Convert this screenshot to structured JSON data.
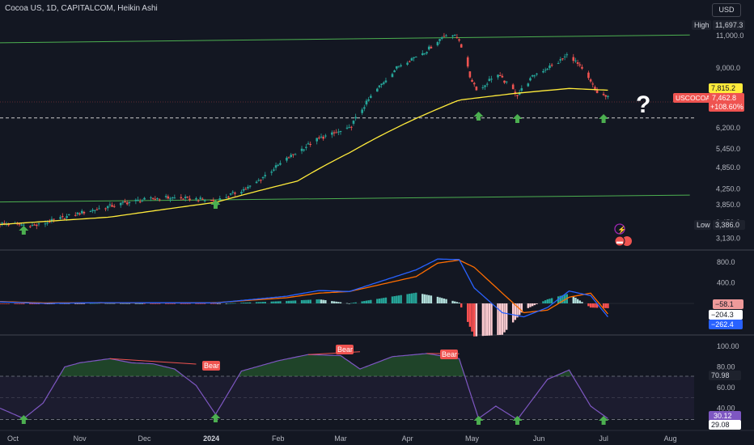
{
  "header": {
    "title": "Cocoa US, 1D, CAPITALCOM, Heikin Ashi",
    "currency": "USD"
  },
  "colors": {
    "bull": "#26a69a",
    "bear": "#ef5350",
    "sma": "#ffeb3b",
    "channel": "#4caf50",
    "macd": "#2962ff",
    "signal": "#ff6d00",
    "rsi": "#7e57c2",
    "arrow": "#4caf50"
  },
  "chart_data": [
    {
      "type": "candlestick",
      "style": "Heikin Ashi",
      "price_scale": "log",
      "y_ticks": [
        "11,000.0",
        "9,000.0",
        "7,815.2",
        "6,200.0",
        "5,450.0",
        "4,850.0",
        "4,250.0",
        "3,850.0",
        "3,450.0",
        "3,130.0"
      ],
      "labels": {
        "high": {
          "text": "High",
          "value": "11,697.3"
        },
        "low": {
          "text": "Low",
          "value": "3,386.0"
        },
        "symbol": "USCOCOA",
        "last_price": "7,462.8",
        "change_pct": "+108.60%",
        "sma_value": "7,815.2",
        "question_mark": "?"
      },
      "close_path": [
        [
          "2023-09-25",
          3420
        ],
        [
          "2023-10-12",
          3380
        ],
        [
          "2023-11-01",
          3650
        ],
        [
          "2023-11-25",
          3920
        ],
        [
          "2023-12-10",
          4020
        ],
        [
          "2023-12-25",
          3980
        ],
        [
          "2024-01-03",
          3930
        ],
        [
          "2024-01-20",
          4320
        ],
        [
          "2024-02-05",
          5100
        ],
        [
          "2024-02-20",
          5800
        ],
        [
          "2024-03-05",
          6150
        ],
        [
          "2024-03-15",
          7500
        ],
        [
          "2024-03-28",
          9100
        ],
        [
          "2024-04-10",
          10000
        ],
        [
          "2024-04-20",
          11200
        ],
        [
          "2024-04-25",
          10700
        ],
        [
          "2024-04-30",
          8500
        ],
        [
          "2024-05-04",
          7700
        ],
        [
          "2024-05-12",
          8700
        ],
        [
          "2024-05-22",
          7600
        ],
        [
          "2024-05-30",
          8600
        ],
        [
          "2024-06-10",
          9300
        ],
        [
          "2024-06-15",
          9800
        ],
        [
          "2024-06-22",
          8700
        ],
        [
          "2024-06-28",
          7700
        ],
        [
          "2024-07-03",
          7460
        ]
      ],
      "sma_path": [
        [
          "2023-09-25",
          3400
        ],
        [
          "2023-11-15",
          3560
        ],
        [
          "2024-01-03",
          3900
        ],
        [
          "2024-02-10",
          4450
        ],
        [
          "2024-03-05",
          5300
        ],
        [
          "2024-04-01",
          6400
        ],
        [
          "2024-04-25",
          7350
        ],
        [
          "2024-05-20",
          7650
        ],
        [
          "2024-06-15",
          7900
        ],
        [
          "2024-07-03",
          7815
        ]
      ],
      "channel_upper": [
        [
          "2023-09-25",
          10480
        ],
        [
          "2024-08-10",
          11000
        ]
      ],
      "channel_lower": [
        [
          "2023-09-25",
          3910
        ],
        [
          "2024-08-10",
          4080
        ]
      ],
      "support_dashed": 6580,
      "buy_signals": [
        "2023-10-06",
        "2024-01-03",
        "2024-05-04",
        "2024-05-22",
        "2024-07-01"
      ]
    },
    {
      "type": "macd",
      "y_ticks": [
        "800.0",
        "400.0"
      ],
      "labels": {
        "histogram": "−58.1",
        "signal": "−204.3",
        "macd": "−262.4"
      },
      "macd_path": [
        [
          "2023-09-25",
          30
        ],
        [
          "2023-10-15",
          0
        ],
        [
          "2023-11-10",
          15
        ],
        [
          "2024-01-03",
          10
        ],
        [
          "2024-02-05",
          140
        ],
        [
          "2024-02-20",
          250
        ],
        [
          "2024-03-05",
          230
        ],
        [
          "2024-04-05",
          650
        ],
        [
          "2024-04-15",
          860
        ],
        [
          "2024-04-25",
          850
        ],
        [
          "2024-05-02",
          300
        ],
        [
          "2024-05-15",
          -180
        ],
        [
          "2024-05-25",
          -260
        ],
        [
          "2024-06-05",
          -80
        ],
        [
          "2024-06-15",
          240
        ],
        [
          "2024-06-25",
          150
        ],
        [
          "2024-07-03",
          -262
        ]
      ],
      "signal_path": [
        [
          "2023-09-25",
          35
        ],
        [
          "2023-10-15",
          10
        ],
        [
          "2023-11-10",
          12
        ],
        [
          "2024-01-03",
          15
        ],
        [
          "2024-02-05",
          110
        ],
        [
          "2024-02-20",
          200
        ],
        [
          "2024-03-05",
          230
        ],
        [
          "2024-04-05",
          520
        ],
        [
          "2024-04-15",
          780
        ],
        [
          "2024-04-25",
          840
        ],
        [
          "2024-05-02",
          700
        ],
        [
          "2024-05-15",
          200
        ],
        [
          "2024-05-25",
          -180
        ],
        [
          "2024-06-05",
          -130
        ],
        [
          "2024-06-15",
          120
        ],
        [
          "2024-06-25",
          200
        ],
        [
          "2024-07-03",
          -204
        ]
      ]
    },
    {
      "type": "rsi",
      "y_ticks": [
        "100.00",
        "80.00",
        "60.00",
        "40.00"
      ],
      "labels": {
        "upper_band": "70.98",
        "value": "30.12",
        "lower": "29.08"
      },
      "divergence_labels": [
        "Bear",
        "Bear",
        "Bear"
      ],
      "rsi_path": [
        [
          "2023-09-25",
          40
        ],
        [
          "2023-10-06",
          30
        ],
        [
          "2023-10-15",
          45
        ],
        [
          "2023-10-25",
          80
        ],
        [
          "2023-11-01",
          84
        ],
        [
          "2023-11-15",
          88
        ],
        [
          "2023-11-25",
          84
        ],
        [
          "2023-12-05",
          83
        ],
        [
          "2023-12-15",
          78
        ],
        [
          "2023-12-25",
          62
        ],
        [
          "2024-01-03",
          34
        ],
        [
          "2024-01-15",
          76
        ],
        [
          "2024-02-01",
          86
        ],
        [
          "2024-02-15",
          92
        ],
        [
          "2024-03-01",
          91
        ],
        [
          "2024-03-10",
          78
        ],
        [
          "2024-03-25",
          90
        ],
        [
          "2024-04-10",
          93
        ],
        [
          "2024-04-25",
          88
        ],
        [
          "2024-05-04",
          30
        ],
        [
          "2024-05-12",
          42
        ],
        [
          "2024-05-22",
          29
        ],
        [
          "2024-06-05",
          68
        ],
        [
          "2024-06-15",
          77
        ],
        [
          "2024-06-25",
          42
        ],
        [
          "2024-07-03",
          30
        ]
      ],
      "bands": [
        30,
        50,
        70
      ]
    }
  ],
  "x_axis": {
    "ticks": [
      "Oct",
      "Nov",
      "Dec",
      "2024",
      "Feb",
      "Mar",
      "Apr",
      "May",
      "Jun",
      "Jul",
      "Aug"
    ],
    "tick_dates": [
      "2023-10-01",
      "2023-11-01",
      "2023-12-01",
      "2024-01-01",
      "2024-02-01",
      "2024-03-01",
      "2024-04-01",
      "2024-05-01",
      "2024-06-01",
      "2024-07-01",
      "2024-08-01"
    ],
    "range": [
      "2023-09-25",
      "2024-08-12"
    ]
  }
}
